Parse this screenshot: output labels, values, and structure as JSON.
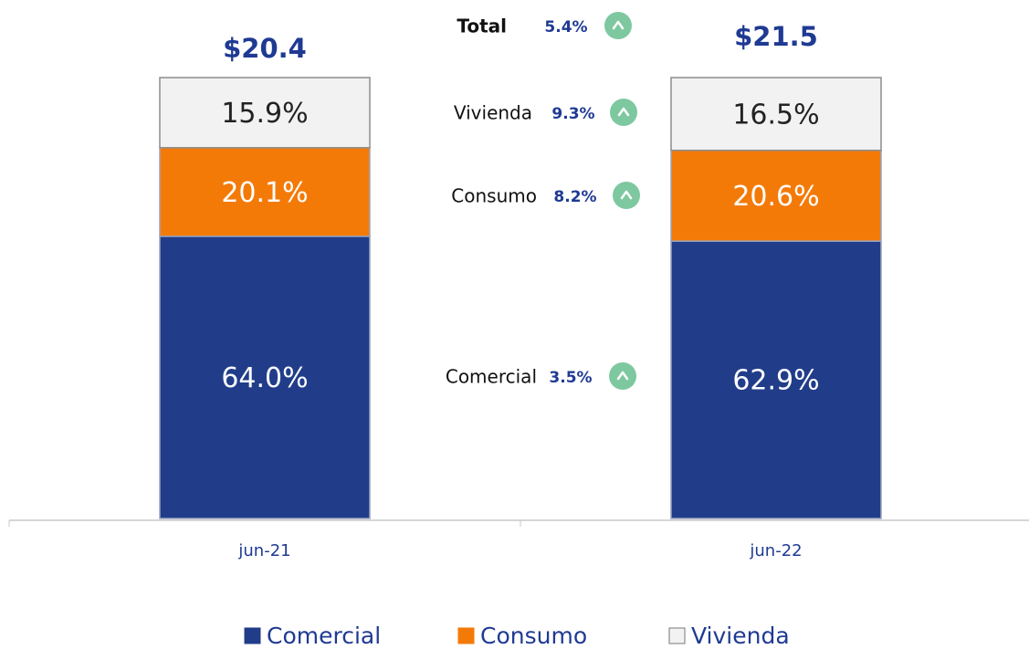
{
  "chart_data": {
    "type": "stacked_bar",
    "categories": [
      "jun-21",
      "jun-22"
    ],
    "ylim": [
      0,
      100
    ],
    "series": [
      {
        "name": "Comercial",
        "color": "#213d8a",
        "values": [
          64.0,
          62.9
        ],
        "value_labels": [
          "64.0%",
          "62.9%"
        ]
      },
      {
        "name": "Consumo",
        "color": "#f47a08",
        "values": [
          20.1,
          20.6
        ],
        "value_labels": [
          "20.1%",
          "20.6%"
        ]
      },
      {
        "name": "Vivienda",
        "color": "#f2f2f2",
        "values": [
          15.9,
          16.5
        ],
        "value_labels": [
          "15.9%",
          "16.5%"
        ]
      }
    ],
    "totals": {
      "values": [
        20.4,
        21.5
      ],
      "value_labels": [
        "$20.4",
        "$21.5"
      ]
    },
    "growth": [
      {
        "name": "Total",
        "value": 5.4,
        "label": "5.4%"
      },
      {
        "name": "Vivienda",
        "value": 9.3,
        "label": "9.3%"
      },
      {
        "name": "Consumo",
        "value": 8.2,
        "label": "8.2%"
      },
      {
        "name": "Comercial",
        "value": 3.5,
        "label": "3.5%"
      }
    ]
  }
}
